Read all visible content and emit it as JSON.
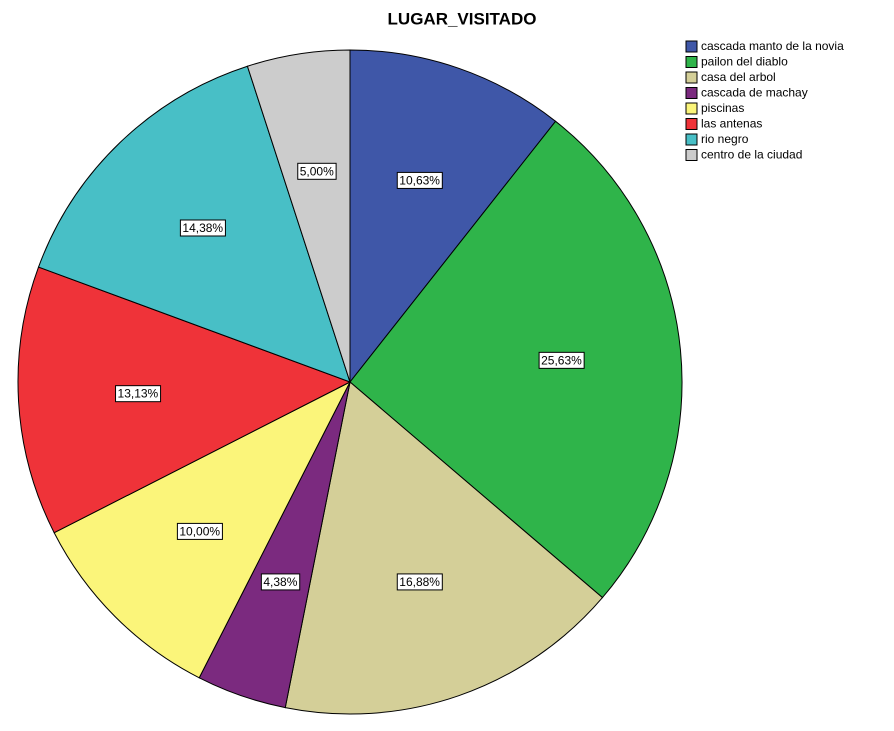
{
  "chart_data": {
    "type": "pie",
    "title": "LUGAR_VISITADO",
    "categories": [
      "cascada manto de la novia",
      "pailon del diablo",
      "casa del arbol",
      "cascada de machay",
      "piscinas",
      "las antenas",
      "rio negro",
      "centro de la ciudad"
    ],
    "values": [
      10.63,
      25.63,
      16.88,
      4.38,
      10.0,
      13.13,
      14.38,
      5.0
    ],
    "value_labels": [
      "10,63%",
      "25,63%",
      "16,88%",
      "4,38%",
      "10,00%",
      "13,13%",
      "14,38%",
      "5,00%"
    ],
    "colors": [
      "#3f57a8",
      "#2fb44a",
      "#d4cf98",
      "#7b2a7f",
      "#fbf57a",
      "#ef3339",
      "#48bfc6",
      "#cccccc"
    ],
    "legend": "top-right"
  }
}
